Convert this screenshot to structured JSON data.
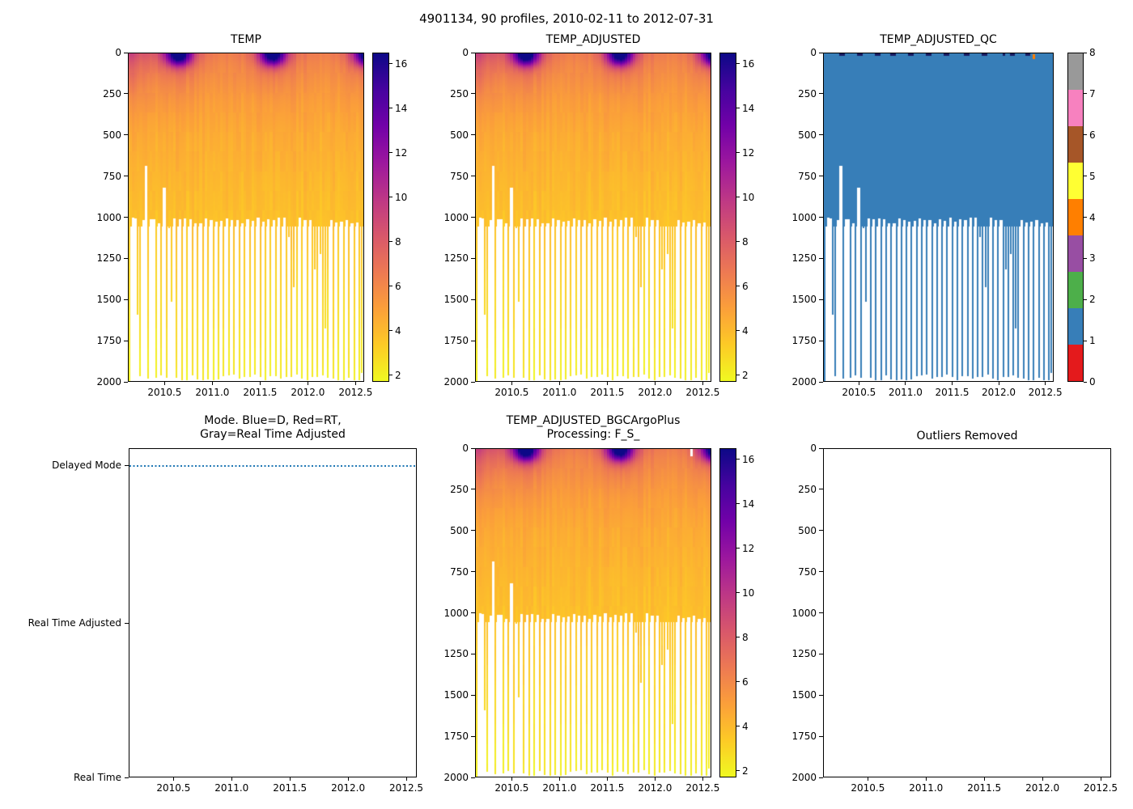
{
  "figure": {
    "suptitle": "4901134, 90 profiles, 2010-02-11 to 2012-07-31",
    "background_color": "#ffffff",
    "text_color": "#000000"
  },
  "panels": {
    "temp": {
      "title": "TEMP"
    },
    "temp_adjusted": {
      "title": "TEMP_ADJUSTED"
    },
    "temp_adjusted_qc": {
      "title": "TEMP_ADJUSTED_QC"
    },
    "mode": {
      "title": "Mode. Blue=D, Red=RT,\nGray=Real Time Adjusted",
      "y_tick_labels": [
        "Delayed Mode",
        "Real Time Adjusted",
        "Real Time"
      ],
      "line_color": "#1f77b4",
      "line_at": "Delayed Mode"
    },
    "bgc": {
      "title": "TEMP_ADJUSTED_BGCArgoPlus\nProcessing: F_S_"
    },
    "outliers": {
      "title": "Outliers Removed"
    }
  },
  "chart_data": [
    {
      "type": "heatmap",
      "title": "TEMP",
      "x_range": [
        2010.115,
        2012.59
      ],
      "x_ticks": [
        2010.5,
        2011.0,
        2011.5,
        2012.0,
        2012.5
      ],
      "y_range": [
        0,
        2000
      ],
      "y_ticks": [
        0,
        250,
        500,
        750,
        1000,
        1250,
        1500,
        1750,
        2000
      ],
      "colormap": "plasma_reversed",
      "colormap_cold_color": "#f0f921",
      "colormap_warm_color": "#0d0887",
      "color_range": [
        1.7,
        16.5
      ],
      "colorbar_ticks": [
        2,
        4,
        6,
        8,
        10,
        12,
        14,
        16
      ],
      "n_profiles": 90,
      "time_start": 2010.115,
      "time_end": 2012.58,
      "profile_max_depth_m": [
        2050,
        1000,
        1000,
        1640,
        2000,
        1000,
        680,
        2000,
        1000,
        1000,
        2000,
        1000,
        2000,
        810,
        2000,
        1040,
        1520,
        1000,
        2000,
        1000,
        2000,
        1000,
        2000,
        1000,
        2000,
        1000,
        2000,
        1000,
        2000,
        1000,
        2000,
        1000,
        2000,
        1000,
        2000,
        1000,
        2000,
        1000,
        2000,
        1000,
        2000,
        1000,
        2000,
        1000,
        2000,
        1000,
        2000,
        1000,
        2000,
        1000,
        2000,
        1000,
        2000,
        1000,
        2000,
        1000,
        2000,
        1000,
        2000,
        1000,
        2000,
        1140,
        2000,
        1460,
        2000,
        1000,
        2000,
        1000,
        2000,
        1000,
        2000,
        1340,
        2000,
        1230,
        2000,
        1720,
        2000,
        1000,
        2000,
        1000,
        2000,
        1000,
        2000,
        1000,
        2000,
        1000,
        2000,
        1000,
        2000,
        1960
      ],
      "field_model": {
        "depth_profile": {
          "depths_m": [
            0,
            60,
            150,
            300,
            500,
            800,
            1100,
            1500,
            2000
          ],
          "temps_c": [
            6.4,
            6.0,
            5.6,
            5.0,
            4.5,
            4.0,
            3.6,
            2.9,
            2.1
          ]
        },
        "seasonal": {
          "peak_year_fraction": 0.63,
          "sigma": 0.095,
          "surface_amplitude_c": 11.0,
          "mixed_layer_m": 62,
          "thermocline_sharpness_m": 20,
          "broad_sigma": 0.17,
          "broad_amplitude_c": 2.3,
          "broad_decay_m": 135
        },
        "early_2010_warm": {
          "amplitude_c": 3.4,
          "decay_years": 0.22,
          "decay_depth_m": 185,
          "until": 2010.8
        },
        "column_noise_c": 0.5,
        "cell_noise_c": 0.3
      }
    },
    {
      "type": "heatmap",
      "title": "TEMP_ADJUSTED",
      "same_field_as_index": 0
    },
    {
      "type": "heatmap",
      "title": "TEMP_ADJUSTED_QC",
      "flag_value_everywhere": 1,
      "flag_colors": [
        "#e41a1c",
        "#377eb8",
        "#4daf4a",
        "#984ea3",
        "#ff7f00",
        "#ffff33",
        "#a65628",
        "#f781bf",
        "#999999"
      ],
      "flag1_color": "#377eb8",
      "surface_dark_mark_color": "#171a60",
      "colorbar_ticks": [
        0,
        1,
        2,
        3,
        4,
        5,
        6,
        7,
        8
      ],
      "surface_dark_mark_profiles": [
        6,
        7,
        13,
        14,
        20,
        21,
        26,
        27,
        33,
        34,
        40,
        41,
        47,
        48,
        55,
        56,
        62,
        63,
        70,
        73,
        74,
        79,
        80
      ],
      "surface_flag4_profile": 82,
      "surface_flag4_depth_range_m": [
        6,
        36
      ]
    },
    {
      "type": "line",
      "title": "Mode. Blue=D, Red=RT, Gray=Real Time Adjusted",
      "x_range": [
        2010.115,
        2012.59
      ],
      "x_ticks": [
        2010.5,
        2011.0,
        2011.5,
        2012.0,
        2012.5
      ],
      "y_categories": [
        "Real Time",
        "Real Time Adjusted",
        "Delayed Mode"
      ],
      "y_tick_fractions_from_top": [
        0.052,
        0.531,
        1.0
      ],
      "series": [
        {
          "name": "Mode",
          "color": "#1f77b4",
          "linestyle": "dotted",
          "value_for_all_profiles": "Delayed Mode",
          "x_span": [
            2010.115,
            2012.59
          ]
        }
      ]
    },
    {
      "type": "heatmap",
      "title": "TEMP_ADJUSTED_BGCArgoPlus Processing: F_S_",
      "same_field_as_index": 0,
      "missing_surface_profile": 82,
      "missing_surface_depth_m": 42
    },
    {
      "type": "empty",
      "title": "Outliers Removed",
      "x_range": [
        2010.115,
        2012.59
      ],
      "x_ticks": [
        2010.5,
        2011.0,
        2011.5,
        2012.0,
        2012.5
      ],
      "y_range": [
        0,
        2000
      ],
      "y_ticks": [
        0,
        250,
        500,
        750,
        1000,
        1250,
        1500,
        1750,
        2000
      ],
      "points": []
    }
  ]
}
